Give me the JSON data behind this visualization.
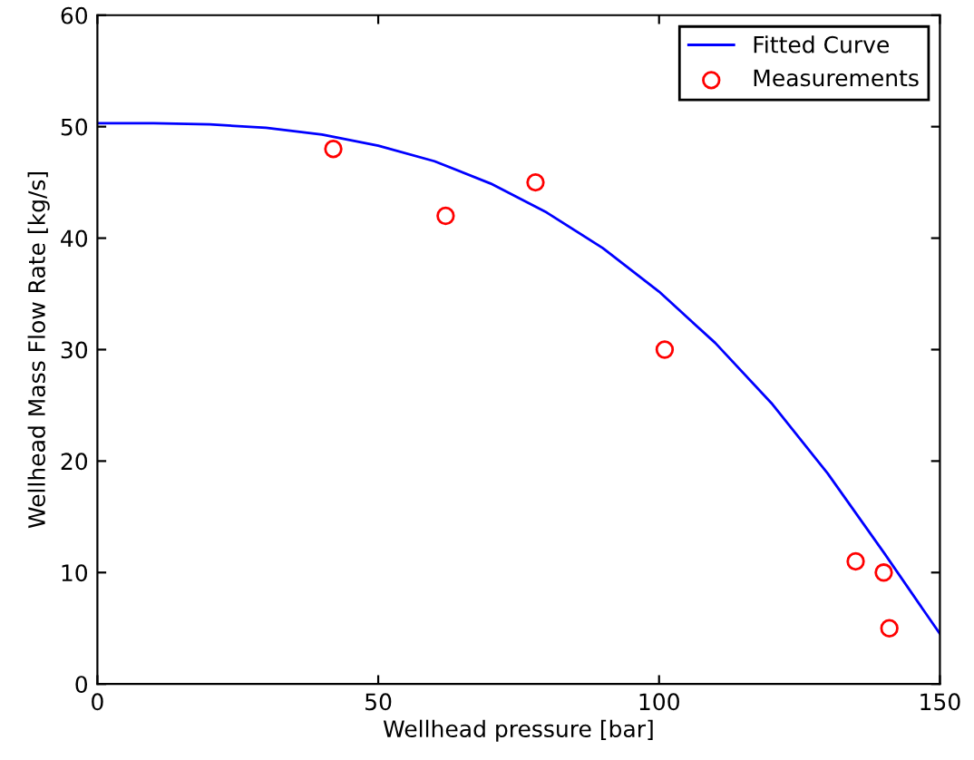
{
  "chart_data": {
    "type": "line",
    "xlabel": "Wellhead pressure [bar]",
    "ylabel": "Wellhead Mass Flow Rate [kg/s]",
    "xlim": [
      0,
      150
    ],
    "xticks": [
      0,
      50,
      100,
      150
    ],
    "ylim": [
      0,
      60
    ],
    "yticks": [
      0,
      10,
      20,
      30,
      40,
      50,
      60
    ],
    "grid": false,
    "legend": "top right",
    "series": [
      {
        "name": "Fitted Curve",
        "color": "#0000ff",
        "marker": "none",
        "line_style": "solid",
        "x": [
          0,
          10,
          20,
          30,
          40,
          50,
          60,
          70,
          80,
          90,
          100,
          110,
          120,
          130,
          140,
          150
        ],
        "values": [
          50.3,
          50.3,
          50.2,
          49.9,
          49.3,
          48.3,
          46.9,
          44.9,
          42.3,
          39.1,
          35.2,
          30.6,
          25.2,
          18.9,
          11.8,
          4.5
        ]
      },
      {
        "name": "Measurements",
        "type": "scatter",
        "color": "#ff0000",
        "marker": "circle",
        "x": [
          42,
          62,
          78,
          101,
          135,
          140,
          141
        ],
        "values": [
          48,
          42,
          45,
          30,
          11,
          10,
          5
        ]
      }
    ]
  }
}
